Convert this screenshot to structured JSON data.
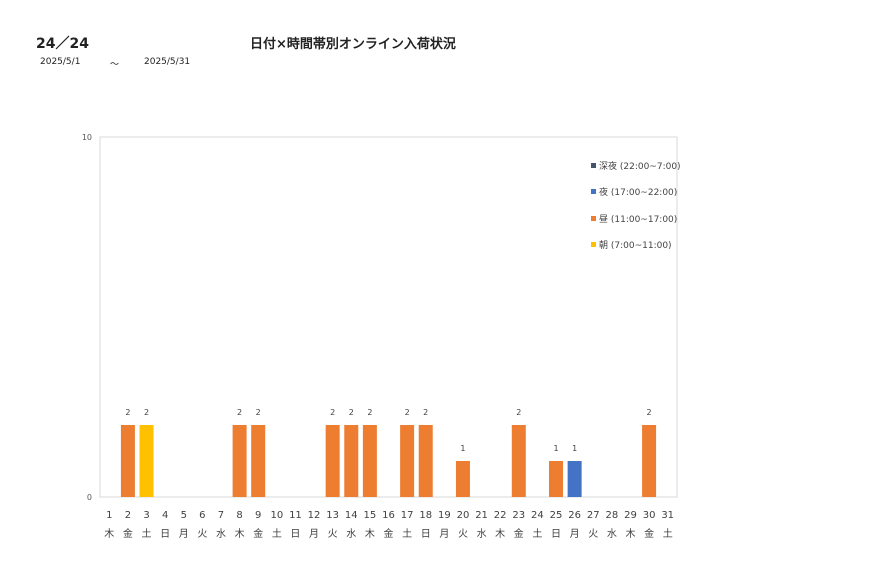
{
  "header": {
    "page_number": "24／24",
    "title": "日付×時間帯別オンライン入荷状況",
    "date_start": "2025/5/1",
    "date_separator": "～",
    "date_end": "2025/5/31"
  },
  "chart_data": {
    "type": "bar",
    "stacked": true,
    "categories": [
      "1",
      "2",
      "3",
      "4",
      "5",
      "6",
      "7",
      "8",
      "9",
      "10",
      "11",
      "12",
      "13",
      "14",
      "15",
      "16",
      "17",
      "18",
      "19",
      "20",
      "21",
      "22",
      "23",
      "24",
      "25",
      "26",
      "27",
      "28",
      "29",
      "30",
      "31"
    ],
    "weekdays": [
      "木",
      "金",
      "土",
      "日",
      "月",
      "火",
      "水",
      "木",
      "金",
      "土",
      "日",
      "月",
      "火",
      "水",
      "木",
      "金",
      "土",
      "日",
      "月",
      "火",
      "水",
      "木",
      "金",
      "土",
      "日",
      "月",
      "火",
      "水",
      "木",
      "金",
      "土"
    ],
    "series": [
      {
        "name": "朝 (7:00~11:00)",
        "color": "#FFC000",
        "values": [
          0,
          0,
          2,
          0,
          0,
          0,
          0,
          0,
          0,
          0,
          0,
          0,
          0,
          0,
          0,
          0,
          0,
          0,
          0,
          0,
          0,
          0,
          0,
          0,
          0,
          0,
          0,
          0,
          0,
          0,
          0
        ]
      },
      {
        "name": "昼 (11:00~17:00)",
        "color": "#ED7D31",
        "values": [
          0,
          2,
          0,
          0,
          0,
          0,
          0,
          2,
          2,
          0,
          0,
          0,
          2,
          2,
          2,
          0,
          2,
          2,
          0,
          1,
          0,
          0,
          2,
          0,
          1,
          0,
          0,
          0,
          0,
          2,
          0
        ]
      },
      {
        "name": "夜 (17:00~22:00)",
        "color": "#4472C4",
        "values": [
          0,
          0,
          0,
          0,
          0,
          0,
          0,
          0,
          0,
          0,
          0,
          0,
          0,
          0,
          0,
          0,
          0,
          0,
          0,
          0,
          0,
          0,
          0,
          0,
          0,
          1,
          0,
          0,
          0,
          0,
          0
        ]
      },
      {
        "name": "深夜 (22:00~7:00)",
        "color": "#44546A",
        "values": [
          0,
          0,
          0,
          0,
          0,
          0,
          0,
          0,
          0,
          0,
          0,
          0,
          0,
          0,
          0,
          0,
          0,
          0,
          0,
          0,
          0,
          0,
          0,
          0,
          0,
          0,
          0,
          0,
          0,
          0,
          0
        ]
      }
    ],
    "totals": [
      0,
      2,
      2,
      0,
      0,
      0,
      0,
      2,
      2,
      0,
      0,
      0,
      2,
      2,
      2,
      0,
      2,
      2,
      0,
      1,
      0,
      0,
      2,
      0,
      1,
      1,
      0,
      0,
      0,
      2,
      0
    ],
    "ylim": [
      0,
      10
    ],
    "y_ticks": [
      "0",
      "10"
    ],
    "legend_position": "top-right",
    "legend_order": [
      "深夜 (22:00~7:00)",
      "夜 (17:00~22:00)",
      "昼 (11:00~17:00)",
      "朝 (7:00~11:00)"
    ],
    "grid": false
  }
}
